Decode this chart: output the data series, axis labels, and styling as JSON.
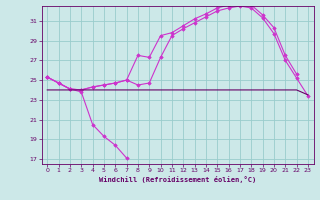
{
  "xlabel": "Windchill (Refroidissement éolien,°C)",
  "bg_color": "#cce8e8",
  "grid_color": "#99cccc",
  "line_color": "#cc33cc",
  "line_color2": "#660066",
  "ylim": [
    16.5,
    32.5
  ],
  "xlim": [
    -0.5,
    23.5
  ],
  "yticks": [
    17,
    19,
    21,
    23,
    25,
    27,
    29,
    31
  ],
  "xticks": [
    0,
    1,
    2,
    3,
    4,
    5,
    6,
    7,
    8,
    9,
    10,
    11,
    12,
    13,
    14,
    15,
    16,
    17,
    18,
    19,
    20,
    21,
    22,
    23
  ],
  "series_windchill": [
    25.3,
    24.7,
    24.1,
    23.8,
    20.5,
    19.3,
    18.4,
    17.1,
    null,
    null,
    null,
    null,
    null,
    null,
    null,
    null,
    null,
    null,
    null,
    null,
    null,
    null,
    null,
    null
  ],
  "series_temp": [
    25.3,
    24.7,
    24.1,
    24.0,
    24.3,
    24.5,
    24.7,
    25.0,
    24.5,
    24.7,
    27.3,
    29.5,
    30.2,
    30.8,
    31.4,
    32.0,
    32.3,
    32.5,
    32.3,
    31.3,
    29.7,
    27.0,
    25.2,
    23.4
  ],
  "series_upper": [
    25.3,
    24.7,
    24.1,
    24.0,
    24.3,
    24.5,
    24.7,
    25.0,
    27.5,
    27.3,
    29.5,
    29.8,
    30.5,
    31.2,
    31.7,
    32.3,
    32.6,
    32.7,
    32.6,
    31.6,
    30.3,
    27.5,
    25.6,
    null
  ],
  "series_flat": [
    24.0,
    24.0,
    24.0,
    24.0,
    24.0,
    24.0,
    24.0,
    24.0,
    24.0,
    24.0,
    24.0,
    24.0,
    24.0,
    24.0,
    24.0,
    24.0,
    24.0,
    24.0,
    24.0,
    24.0,
    24.0,
    24.0,
    24.0,
    23.5
  ]
}
